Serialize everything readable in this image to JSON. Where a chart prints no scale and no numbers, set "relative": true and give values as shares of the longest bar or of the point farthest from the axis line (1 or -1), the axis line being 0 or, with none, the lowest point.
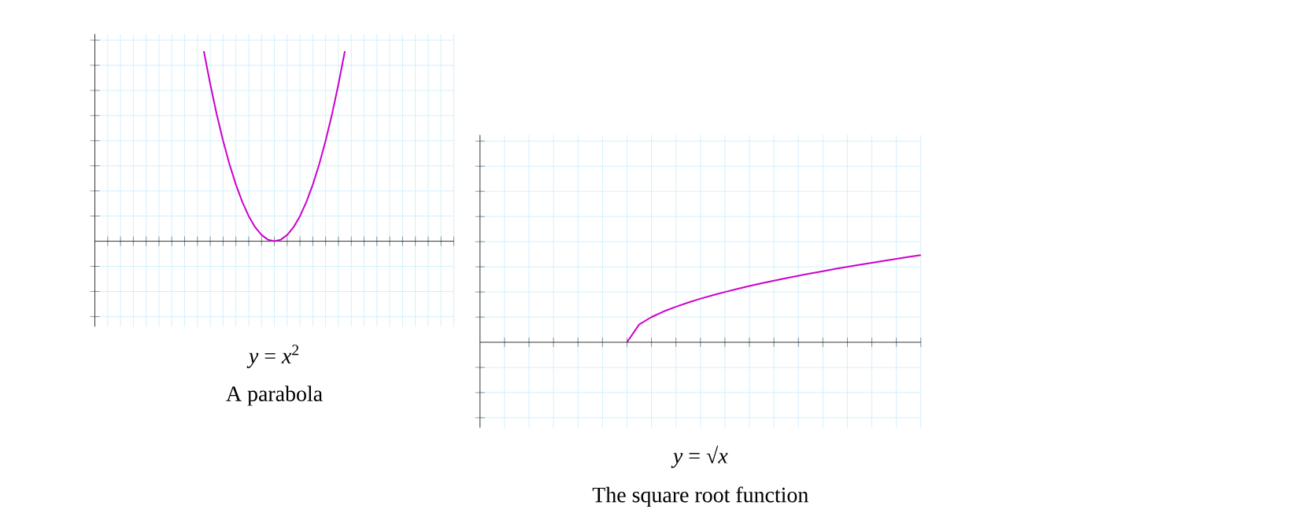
{
  "chart_data": [
    {
      "type": "line",
      "relative": true,
      "grid": true,
      "xlabel": "*y* = *x*$^{2}$",
      "annotations": [
        "A parabola"
      ],
      "categories": [
        null,
        null,
        null,
        null,
        null,
        null,
        null,
        null,
        null,
        null,
        null,
        null,
        null,
        null,
        null,
        null,
        null,
        null,
        null,
        null,
        null,
        null,
        null,
        null,
        null,
        null,
        null,
        null,
        null,
        null,
        null,
        null,
        null,
        null,
        null,
        null,
        null,
        null,
        null,
        null,
        null,
        null,
        null,
        null,
        null,
        null,
        null,
        null,
        null,
        null,
        null,
        null,
        null,
        null,
        null,
        null,
        null
      ],
      "series": [
        {
          "color": "#cc00cc",
          "values": [
            null,
            null,
            null,
            null,
            null,
            null,
            null,
            null,
            null,
            null,
            null,
            null,
            null,
            null,
            null,
            null,
            null,
            1,
            0.826,
            0.669,
            0.529,
            0.405,
            0.298,
            0.207,
            0.132,
            0.074,
            0.033,
            0.008,
            0,
            0.008,
            0.033,
            0.074,
            0.132,
            0.207,
            0.298,
            0.405,
            0.529,
            0.669,
            0.826,
            1,
            null,
            null,
            null,
            null,
            null,
            null,
            null,
            null,
            null,
            null,
            null,
            null,
            null,
            null,
            null,
            null,
            null
          ]
        }
      ]
    },
    {
      "type": "line",
      "relative": true,
      "grid": true,
      "xlabel": "*y* = √*x*",
      "annotations": [
        "The square root function"
      ],
      "categories": [
        null,
        null,
        null,
        null,
        null,
        null,
        null,
        null,
        null,
        null,
        null,
        null,
        null,
        null,
        null,
        null,
        null,
        null,
        null,
        null,
        null,
        null,
        null,
        null,
        null,
        null,
        null,
        null,
        null,
        null,
        null,
        null,
        null,
        null,
        null,
        null,
        null
      ],
      "series": [
        {
          "color": "#cc00cc",
          "values": [
            null,
            null,
            null,
            null,
            null,
            null,
            null,
            null,
            null,
            null,
            null,
            null,
            0,
            0.204,
            0.289,
            0.354,
            0.408,
            0.456,
            0.5,
            0.54,
            0.577,
            0.612,
            0.645,
            0.677,
            0.707,
            0.736,
            0.764,
            0.791,
            0.816,
            0.842,
            0.866,
            0.89,
            0.913,
            0.935,
            0.957,
            0.979,
            1
          ]
        }
      ]
    }
  ]
}
